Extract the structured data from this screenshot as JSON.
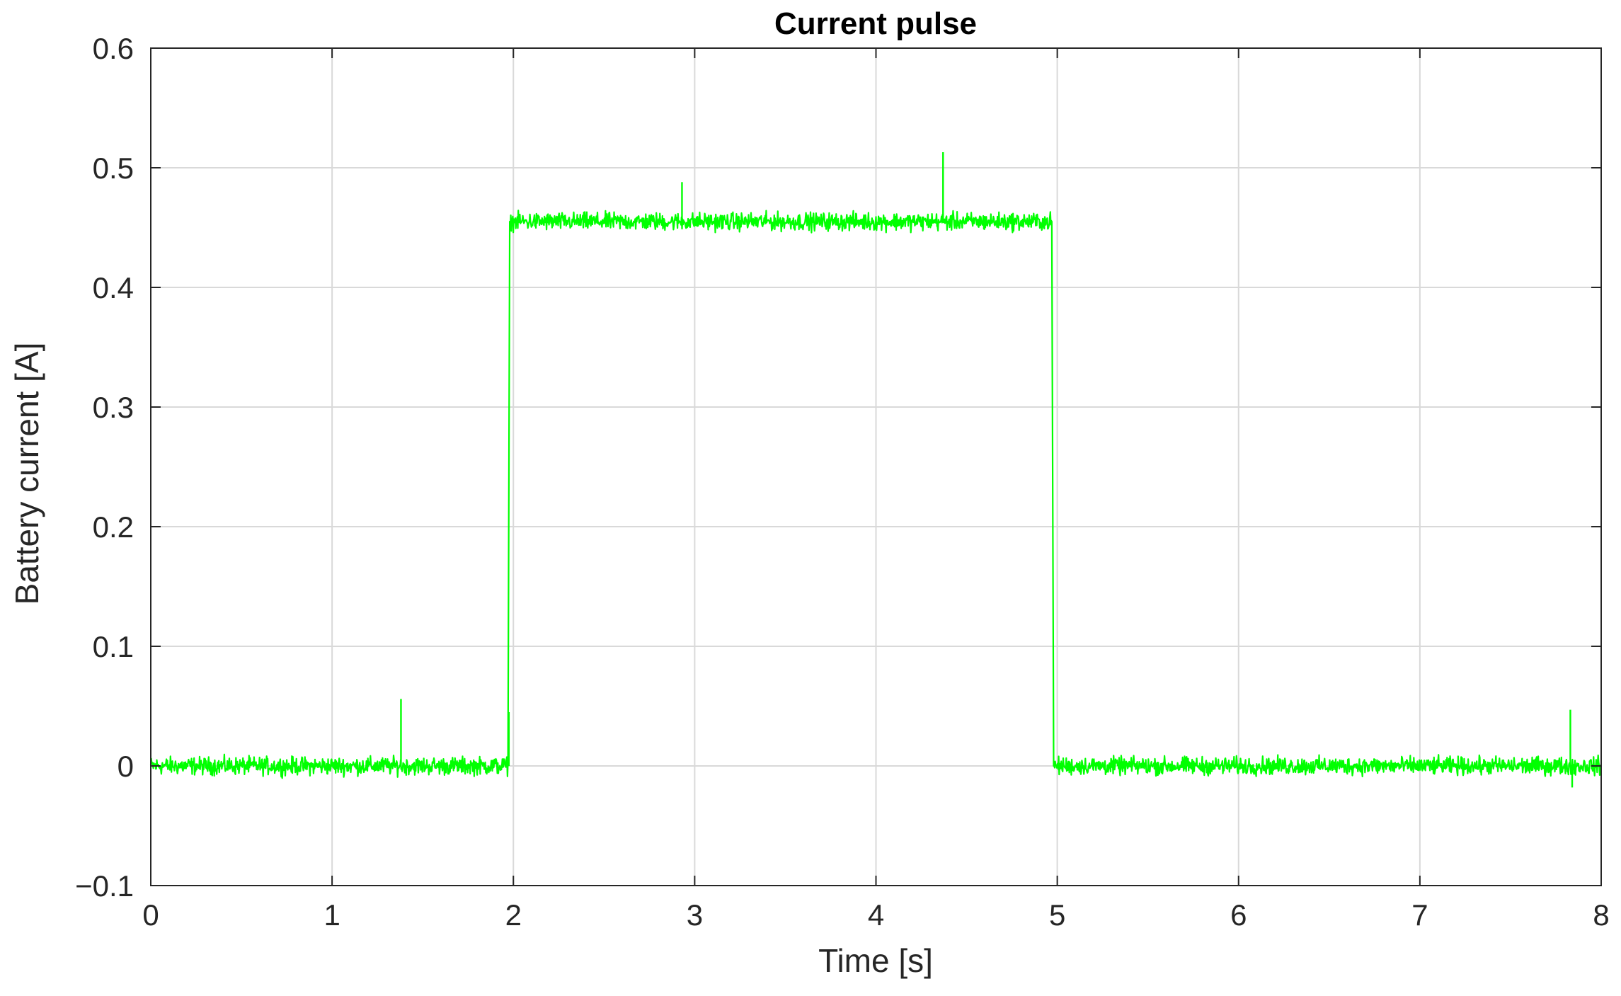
{
  "chart_data": {
    "type": "line",
    "title": "Current pulse",
    "xlabel": "Time [s]",
    "ylabel": "Battery current [A]",
    "xlim": [
      0,
      8
    ],
    "ylim": [
      -0.1,
      0.6
    ],
    "xticks": [
      0,
      1,
      2,
      3,
      4,
      5,
      6,
      7,
      8
    ],
    "xtick_labels": [
      "0",
      "1",
      "2",
      "3",
      "4",
      "5",
      "6",
      "7",
      "8"
    ],
    "yticks": [
      -0.1,
      0,
      0.1,
      0.2,
      0.3,
      0.4,
      0.5,
      0.6
    ],
    "ytick_labels": [
      "−0.1",
      "0",
      "0.1",
      "0.2",
      "0.3",
      "0.4",
      "0.5",
      "0.6"
    ],
    "grid": true,
    "legend": false,
    "colors": {
      "series": "#00ff00",
      "grid": "#d9d9d9",
      "axes": "#262626",
      "text": "#262626"
    },
    "series": [
      {
        "color": "#00ff00",
        "noise_amplitude": 0.008,
        "x": [
          0,
          1.97,
          1.98,
          4.97,
          4.98,
          8
        ],
        "y": [
          0.0,
          0.0,
          0.455,
          0.455,
          0.0,
          0.0
        ],
        "spikes": [
          {
            "x": 1.38,
            "y": 0.056
          },
          {
            "x": 1.975,
            "y": 0.045
          },
          {
            "x": 2.93,
            "y": 0.488
          },
          {
            "x": 4.37,
            "y": 0.513
          },
          {
            "x": 7.83,
            "y": 0.047
          },
          {
            "x": 7.84,
            "y": -0.018
          }
        ]
      }
    ]
  }
}
